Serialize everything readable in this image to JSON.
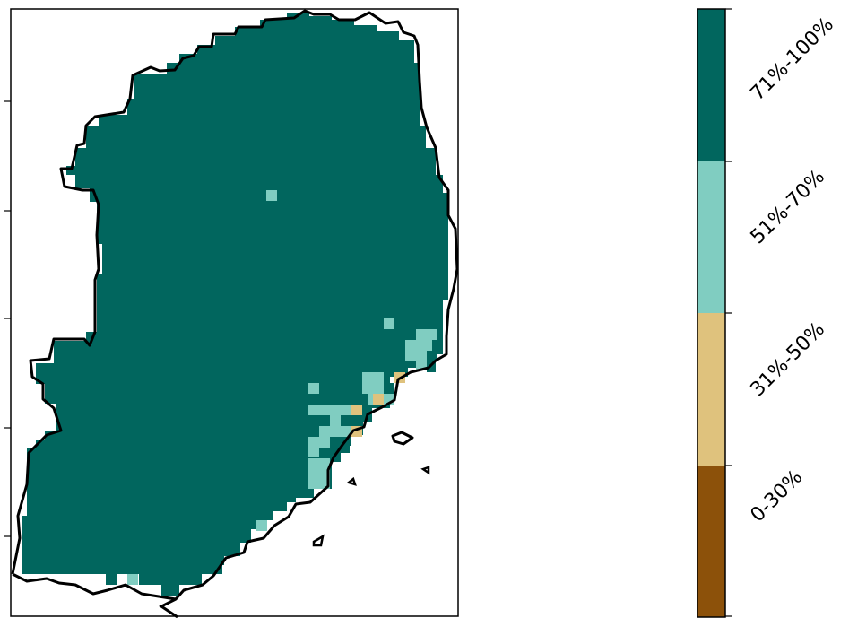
{
  "legend": {
    "classes": [
      {
        "label": "0-30%",
        "color": "#8c510a"
      },
      {
        "label": "31%-50%",
        "color": "#dfc27d"
      },
      {
        "label": "51%-70%",
        "color": "#80cdc1"
      },
      {
        "label": "71%-100%",
        "color": "#01665e"
      }
    ]
  },
  "map": {
    "region_fill": "#01665e",
    "outline_color": "#000000",
    "frame_color": "#000000",
    "y_ticks": 5
  }
}
